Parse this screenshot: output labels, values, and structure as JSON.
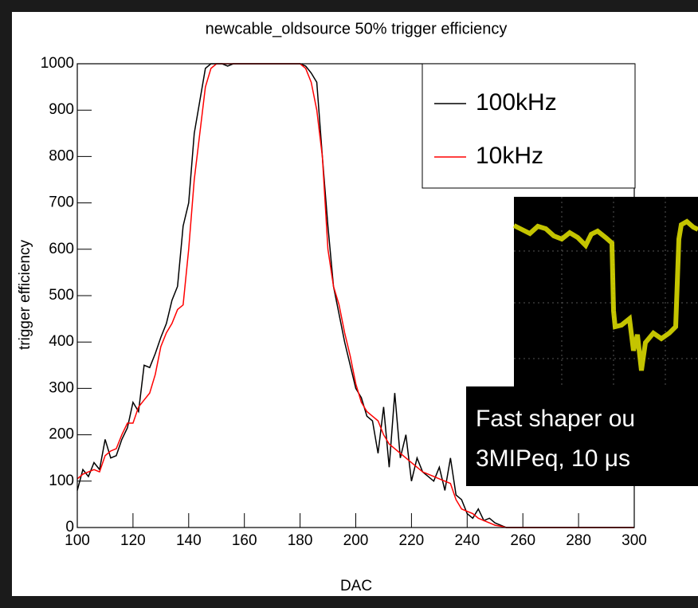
{
  "chart_data": {
    "type": "line",
    "title": "newcable_oldsource 50% trigger efficiency",
    "x_label": "DAC",
    "y_label": "trigger efficiency",
    "x": [
      100,
      102,
      104,
      106,
      108,
      110,
      112,
      114,
      116,
      118,
      120,
      122,
      124,
      126,
      128,
      130,
      132,
      134,
      136,
      138,
      140,
      142,
      144,
      146,
      148,
      150,
      152,
      154,
      156,
      158,
      160,
      162,
      164,
      166,
      168,
      170,
      172,
      174,
      176,
      178,
      180,
      182,
      184,
      186,
      188,
      190,
      192,
      194,
      196,
      198,
      200,
      202,
      204,
      206,
      208,
      210,
      212,
      214,
      216,
      218,
      220,
      222,
      224,
      226,
      228,
      230,
      232,
      234,
      236,
      238,
      240,
      242,
      244,
      246,
      248,
      250,
      252,
      254,
      256,
      258,
      260,
      300
    ],
    "series": [
      {
        "name": "100kHz",
        "color": "#000000",
        "values": [
          80,
          125,
          110,
          140,
          125,
          190,
          150,
          155,
          190,
          215,
          270,
          250,
          350,
          345,
          375,
          410,
          440,
          490,
          520,
          650,
          700,
          850,
          920,
          990,
          1000,
          1000,
          1000,
          995,
          1000,
          1000,
          1000,
          1000,
          1000,
          1000,
          1000,
          1000,
          1000,
          1000,
          1000,
          1000,
          1000,
          995,
          980,
          960,
          800,
          650,
          520,
          460,
          400,
          350,
          300,
          280,
          240,
          230,
          160,
          260,
          130,
          290,
          150,
          200,
          100,
          150,
          120,
          110,
          100,
          130,
          80,
          150,
          70,
          60,
          30,
          20,
          40,
          15,
          20,
          10,
          5,
          0,
          0,
          0,
          0,
          0
        ]
      },
      {
        "name": "10kHz",
        "color": "#ff0000",
        "values": [
          105,
          115,
          120,
          125,
          120,
          155,
          165,
          170,
          200,
          225,
          225,
          260,
          275,
          290,
          330,
          390,
          420,
          440,
          470,
          480,
          600,
          750,
          850,
          950,
          990,
          1000,
          1000,
          1000,
          1000,
          1000,
          1000,
          1000,
          1000,
          1000,
          1000,
          1000,
          1000,
          1000,
          1000,
          1000,
          1000,
          990,
          960,
          900,
          800,
          600,
          520,
          480,
          420,
          370,
          310,
          270,
          250,
          240,
          230,
          200,
          180,
          170,
          160,
          150,
          140,
          130,
          120,
          115,
          110,
          105,
          100,
          95,
          60,
          40,
          35,
          30,
          20,
          15,
          10,
          5,
          3,
          0,
          0,
          0,
          0,
          0
        ]
      }
    ],
    "xlim": [
      100,
      300
    ],
    "xticks": [
      100,
      120,
      140,
      160,
      180,
      200,
      220,
      240,
      260,
      280,
      300
    ],
    "ylim": [
      0,
      1000
    ],
    "yticks": [
      0,
      100,
      200,
      300,
      400,
      500,
      600,
      700,
      800,
      900,
      1000
    ],
    "legend": "top-right",
    "annotation": [
      "Fast shaper ou",
      "3MIPeq, 10 μs"
    ]
  }
}
